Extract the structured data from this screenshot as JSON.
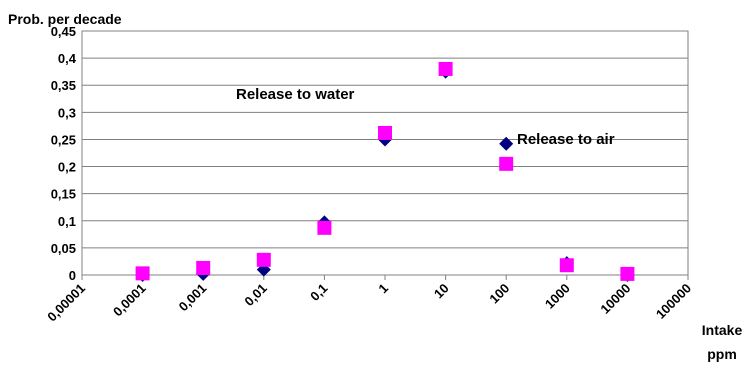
{
  "chart_data": {
    "type": "scatter",
    "y_label": "Prob. per decade",
    "x_label": "Intake ppm",
    "x_log": true,
    "grid": true,
    "xlim": [
      1e-05,
      100000
    ],
    "xticks": [
      {
        "value": 1e-05,
        "label": "0,00001"
      },
      {
        "value": 0.0001,
        "label": "0,0001"
      },
      {
        "value": 0.001,
        "label": "0,001"
      },
      {
        "value": 0.01,
        "label": "0,01"
      },
      {
        "value": 0.1,
        "label": "0,1"
      },
      1,
      10,
      100,
      1000,
      10000,
      100000
    ],
    "ylim": [
      0,
      0.45
    ],
    "yticks": [
      0,
      {
        "value": 0.05,
        "label": "0,05"
      },
      {
        "value": 0.1,
        "label": "0,1"
      },
      {
        "value": 0.15,
        "label": "0,15"
      },
      {
        "value": 0.2,
        "label": "0,2"
      },
      {
        "value": 0.25,
        "label": "0,25"
      },
      {
        "value": 0.3,
        "label": "0,3"
      },
      {
        "value": 0.35,
        "label": "0,35"
      },
      {
        "value": 0.4,
        "label": "0,4"
      },
      {
        "value": 0.45,
        "label": "0,45"
      }
    ],
    "x": [
      0.0001,
      0.001,
      0.01,
      0.1,
      1,
      10,
      100,
      1000,
      10000
    ],
    "series": [
      {
        "name": "Release to air",
        "color": "#000080",
        "marker": "diamond",
        "values": [
          0,
          0.002,
          0.01,
          0.097,
          0.25,
          0.375,
          0.242,
          0.022,
          0
        ]
      },
      {
        "name": "Release to water",
        "color": "#ff00ff",
        "marker": "square",
        "values": [
          0.003,
          0.013,
          0.028,
          0.087,
          0.262,
          0.38,
          0.205,
          0.018,
          0.002
        ]
      }
    ]
  }
}
